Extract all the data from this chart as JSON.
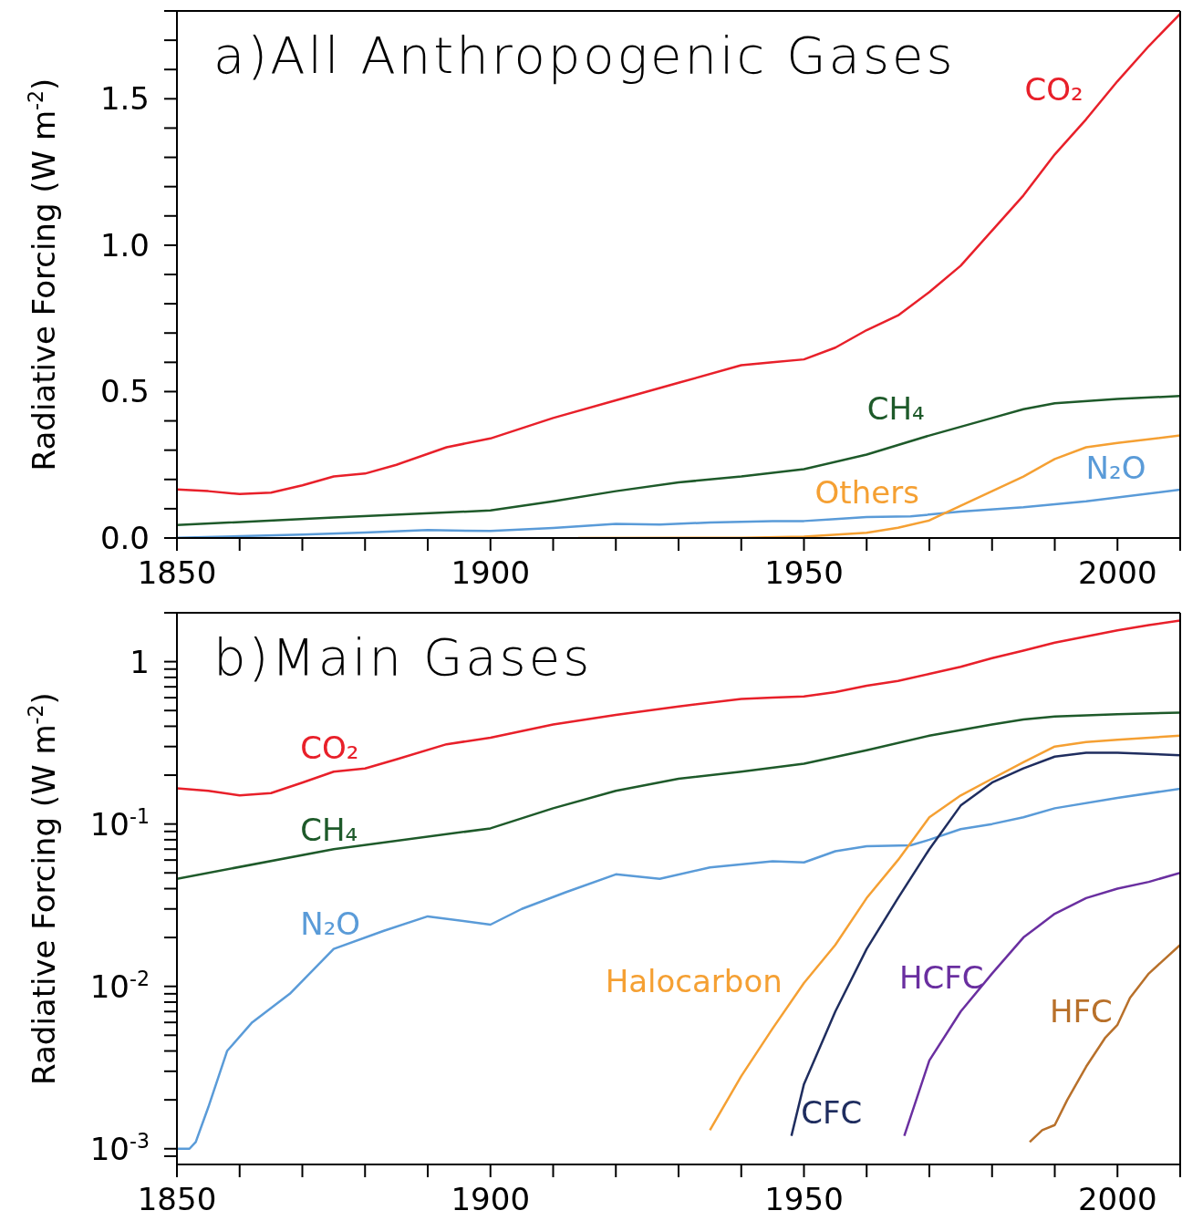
{
  "chart_data": [
    {
      "type": "line",
      "title": "a)All Anthropogenic Gases",
      "ylabel": "Radiative Forcing (W m$^{-2}$)",
      "xlim": [
        1850,
        2010
      ],
      "xticks": [
        1850,
        {
          "value": 1860,
          "label": null
        },
        {
          "value": 1870,
          "label": null
        },
        {
          "value": 1880,
          "label": null
        },
        {
          "value": 1890,
          "label": null
        },
        1900,
        {
          "value": 1910,
          "label": null
        },
        {
          "value": 1920,
          "label": null
        },
        {
          "value": 1930,
          "label": null
        },
        {
          "value": 1940,
          "label": null
        },
        1950,
        {
          "value": 1960,
          "label": null
        },
        {
          "value": 1970,
          "label": null
        },
        {
          "value": 1980,
          "label": null
        },
        {
          "value": 1990,
          "label": null
        },
        2000,
        {
          "value": 2010,
          "label": null
        }
      ],
      "ylim": [
        0,
        1.8
      ],
      "yticks": [
        {
          "value": 0,
          "label": "0.0"
        },
        {
          "value": 0.1,
          "label": null
        },
        {
          "value": 0.2,
          "label": null
        },
        {
          "value": 0.3,
          "label": null
        },
        {
          "value": 0.4,
          "label": null
        },
        0.5,
        {
          "value": 0.6,
          "label": null
        },
        {
          "value": 0.7,
          "label": null
        },
        {
          "value": 0.8,
          "label": null
        },
        {
          "value": 0.9,
          "label": null
        },
        {
          "value": 1,
          "label": "1.0"
        },
        {
          "value": 1.1,
          "label": null
        },
        {
          "value": 1.2,
          "label": null
        },
        {
          "value": 1.3,
          "label": null
        },
        {
          "value": 1.4,
          "label": null
        },
        1.5,
        {
          "value": 1.6,
          "label": null
        },
        {
          "value": 1.7,
          "label": null
        },
        {
          "value": 1.8,
          "label": null
        }
      ],
      "marker": "none",
      "line_style": "solid",
      "series": [
        {
          "name": "CO₂",
          "color": "#e8202a",
          "x": [
            1850,
            1855,
            1860,
            1865,
            1870,
            1875,
            1880,
            1885,
            1893,
            1900,
            1910,
            1920,
            1930,
            1940,
            1945,
            1950,
            1955,
            1960,
            1965,
            1970,
            1975,
            1980,
            1985,
            1990,
            1995,
            2000,
            2005,
            2010
          ],
          "values": [
            0.166,
            0.16,
            0.15,
            0.155,
            0.18,
            0.21,
            0.22,
            0.25,
            0.31,
            0.34,
            0.41,
            0.47,
            0.53,
            0.59,
            0.6,
            0.61,
            0.65,
            0.71,
            0.76,
            0.84,
            0.93,
            1.05,
            1.17,
            1.31,
            1.43,
            1.56,
            1.68,
            1.79
          ]
        },
        {
          "name": "CH₄",
          "color": "#1e5a2a",
          "x": [
            1850,
            1875,
            1900,
            1910,
            1920,
            1930,
            1940,
            1950,
            1960,
            1970,
            1980,
            1985,
            1990,
            2000,
            2010
          ],
          "values": [
            0.044,
            0.07,
            0.094,
            0.125,
            0.16,
            0.19,
            0.21,
            0.235,
            0.285,
            0.35,
            0.41,
            0.44,
            0.46,
            0.475,
            0.485
          ]
        },
        {
          "name": "N₂O",
          "color": "#5a9bd8",
          "x": [
            1850,
            1860,
            1870,
            1880,
            1890,
            1900,
            1910,
            1920,
            1927,
            1935,
            1945,
            1950,
            1955,
            1960,
            1967,
            1975,
            1985,
            1995,
            2010
          ],
          "values": [
            0.001,
            0.006,
            0.012,
            0.019,
            0.027,
            0.024,
            0.034,
            0.048,
            0.046,
            0.053,
            0.058,
            0.058,
            0.065,
            0.072,
            0.074,
            0.09,
            0.105,
            0.125,
            0.165
          ]
        },
        {
          "name": "Others",
          "color": "#f5a033",
          "x": [
            1914,
            1940,
            1950,
            1960,
            1965,
            1970,
            1975,
            1980,
            1985,
            1990,
            1995,
            2000,
            2010
          ],
          "values": [
            0,
            0.001,
            0.005,
            0.018,
            0.035,
            0.06,
            0.11,
            0.16,
            0.21,
            0.27,
            0.31,
            0.325,
            0.35
          ]
        }
      ]
    },
    {
      "type": "line",
      "title": "b)Main Gases",
      "ylabel": "Radiative Forcing (W m$^{-2}$)",
      "log": "y",
      "xlim": [
        1850,
        2010
      ],
      "xticks": [
        1850,
        {
          "value": 1860,
          "label": null
        },
        {
          "value": 1870,
          "label": null
        },
        {
          "value": 1880,
          "label": null
        },
        {
          "value": 1890,
          "label": null
        },
        1900,
        {
          "value": 1910,
          "label": null
        },
        {
          "value": 1920,
          "label": null
        },
        {
          "value": 1930,
          "label": null
        },
        {
          "value": 1940,
          "label": null
        },
        1950,
        {
          "value": 1960,
          "label": null
        },
        {
          "value": 1970,
          "label": null
        },
        {
          "value": 1980,
          "label": null
        },
        {
          "value": 1990,
          "label": null
        },
        2000,
        {
          "value": 2010,
          "label": null
        }
      ],
      "ylim": [
        0.0008,
        2
      ],
      "yticks": [
        {
          "value": 0.0009,
          "label": null
        },
        {
          "value": 0.001,
          "label": "10$^{-3}$"
        },
        {
          "value": 0.002,
          "label": null
        },
        {
          "value": 0.003,
          "label": null
        },
        {
          "value": 0.004,
          "label": null
        },
        {
          "value": 0.005,
          "label": null
        },
        {
          "value": 0.006,
          "label": null
        },
        {
          "value": 0.007,
          "label": null
        },
        {
          "value": 0.008,
          "label": null
        },
        {
          "value": 0.009,
          "label": null
        },
        {
          "value": 0.01,
          "label": "10$^{-2}$"
        },
        {
          "value": 0.02,
          "label": null
        },
        {
          "value": 0.03,
          "label": null
        },
        {
          "value": 0.04,
          "label": null
        },
        {
          "value": 0.05,
          "label": null
        },
        {
          "value": 0.06,
          "label": null
        },
        {
          "value": 0.07,
          "label": null
        },
        {
          "value": 0.08,
          "label": null
        },
        {
          "value": 0.09,
          "label": null
        },
        {
          "value": 0.1,
          "label": "10$^{-1}$"
        },
        {
          "value": 0.2,
          "label": null
        },
        {
          "value": 0.3,
          "label": null
        },
        {
          "value": 0.4,
          "label": null
        },
        {
          "value": 0.5,
          "label": null
        },
        {
          "value": 0.6,
          "label": null
        },
        {
          "value": 0.7,
          "label": null
        },
        {
          "value": 0.8,
          "label": null
        },
        {
          "value": 0.9,
          "label": null
        },
        1,
        {
          "value": 2,
          "label": null
        }
      ],
      "marker": "none",
      "line_style": "solid",
      "series": [
        {
          "name": "CO₂",
          "color": "#e8202a",
          "x": [
            1850,
            1855,
            1860,
            1865,
            1870,
            1875,
            1880,
            1885,
            1893,
            1900,
            1910,
            1920,
            1930,
            1940,
            1945,
            1950,
            1955,
            1960,
            1965,
            1970,
            1975,
            1980,
            1985,
            1990,
            1995,
            2000,
            2005,
            2010
          ],
          "values": [
            0.166,
            0.16,
            0.15,
            0.155,
            0.18,
            0.21,
            0.22,
            0.25,
            0.31,
            0.34,
            0.41,
            0.47,
            0.53,
            0.59,
            0.6,
            0.61,
            0.65,
            0.71,
            0.76,
            0.84,
            0.93,
            1.05,
            1.17,
            1.31,
            1.43,
            1.56,
            1.68,
            1.79
          ]
        },
        {
          "name": "CH₄",
          "color": "#1e5a2a",
          "x": [
            1850,
            1875,
            1900,
            1910,
            1920,
            1930,
            1940,
            1950,
            1960,
            1970,
            1980,
            1985,
            1990,
            2000,
            2010
          ],
          "values": [
            0.046,
            0.07,
            0.094,
            0.125,
            0.16,
            0.19,
            0.21,
            0.235,
            0.285,
            0.35,
            0.41,
            0.44,
            0.46,
            0.475,
            0.485
          ]
        },
        {
          "name": "N₂O",
          "color": "#5a9bd8",
          "x": [
            1850,
            1852,
            1853,
            1855,
            1858,
            1862,
            1868,
            1875,
            1883,
            1890,
            1900,
            1905,
            1912,
            1920,
            1927,
            1935,
            1945,
            1950,
            1955,
            1960,
            1967,
            1970,
            1975,
            1980,
            1985,
            1990,
            2000,
            2010
          ],
          "values": [
            0.001,
            0.001,
            0.0011,
            0.0018,
            0.004,
            0.006,
            0.009,
            0.017,
            0.022,
            0.027,
            0.024,
            0.03,
            0.038,
            0.049,
            0.046,
            0.054,
            0.059,
            0.058,
            0.068,
            0.073,
            0.074,
            0.08,
            0.093,
            0.1,
            0.11,
            0.125,
            0.145,
            0.165
          ]
        },
        {
          "name": "Halocarbon",
          "color": "#f5a033",
          "x": [
            1935,
            1940,
            1945,
            1950,
            1955,
            1960,
            1965,
            1970,
            1975,
            1980,
            1985,
            1990,
            1995,
            2000,
            2010
          ],
          "values": [
            0.0013,
            0.0028,
            0.0055,
            0.0105,
            0.018,
            0.035,
            0.06,
            0.11,
            0.15,
            0.19,
            0.24,
            0.3,
            0.32,
            0.33,
            0.35
          ]
        },
        {
          "name": "CFC",
          "color": "#1f2d5f",
          "x": [
            1948,
            1950,
            1955,
            1960,
            1965,
            1970,
            1975,
            1980,
            1985,
            1990,
            1995,
            2000,
            2010
          ],
          "values": [
            0.0012,
            0.0025,
            0.007,
            0.017,
            0.035,
            0.07,
            0.13,
            0.18,
            0.22,
            0.26,
            0.275,
            0.275,
            0.265
          ]
        },
        {
          "name": "HCFC",
          "color": "#6a2fa0",
          "x": [
            1966,
            1970,
            1975,
            1980,
            1985,
            1990,
            1995,
            2000,
            2005,
            2010
          ],
          "values": [
            0.0012,
            0.0035,
            0.007,
            0.012,
            0.02,
            0.028,
            0.035,
            0.04,
            0.044,
            0.05
          ]
        },
        {
          "name": "HFC",
          "color": "#b8702a",
          "x": [
            1986,
            1988,
            1990,
            1992,
            1995,
            1998,
            2000,
            2002,
            2005,
            2010
          ],
          "values": [
            0.0011,
            0.0013,
            0.0014,
            0.002,
            0.0032,
            0.0048,
            0.0058,
            0.0085,
            0.012,
            0.018
          ]
        }
      ]
    }
  ]
}
